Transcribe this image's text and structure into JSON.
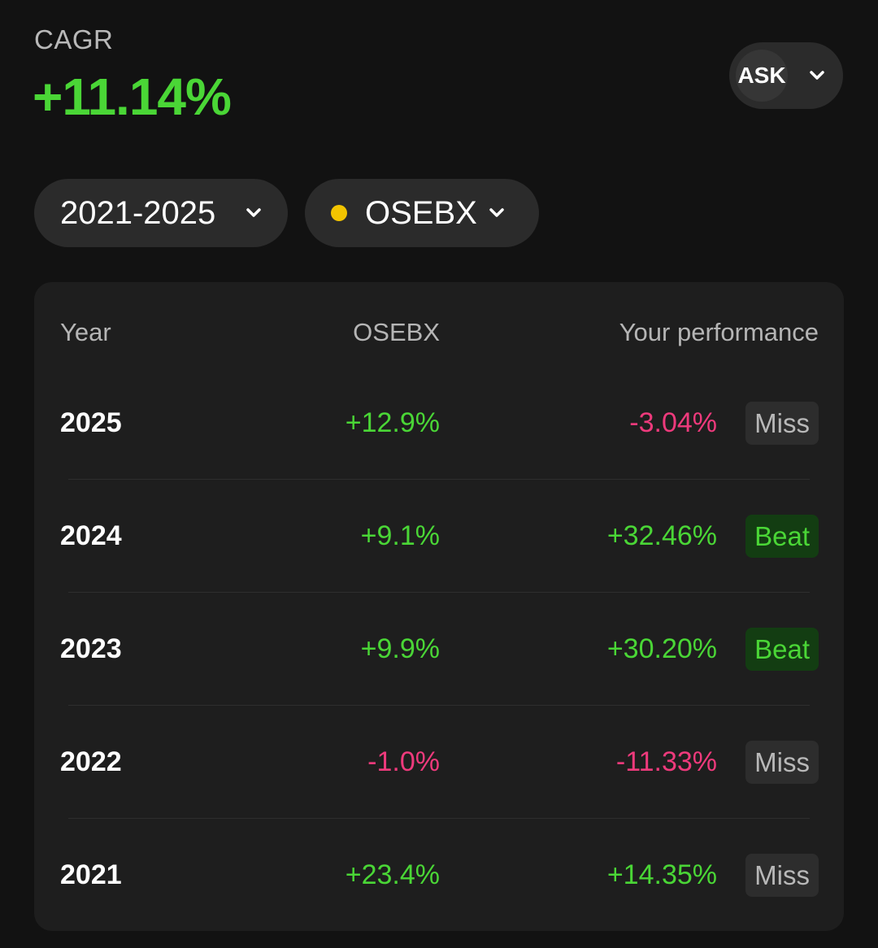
{
  "summary": {
    "label": "CAGR",
    "value": "+11.14%",
    "value_color": "#4ad636"
  },
  "ask_button": {
    "label": "ASK",
    "icon": "chevron-down-icon"
  },
  "filters": {
    "range": {
      "label": "2021-2025",
      "icon": "chevron-down-icon"
    },
    "index": {
      "label": "OSEBX",
      "dot_color": "#f2c400",
      "icon": "chevron-down-icon"
    }
  },
  "table": {
    "headers": {
      "year": "Year",
      "index": "OSEBX",
      "performance": "Your performance"
    },
    "rows": [
      {
        "year": "2025",
        "index": "+12.9%",
        "index_trend": "pos",
        "performance": "-3.04%",
        "performance_trend": "neg",
        "result": "Miss"
      },
      {
        "year": "2024",
        "index": "+9.1%",
        "index_trend": "pos",
        "performance": "+32.46%",
        "performance_trend": "pos",
        "result": "Beat"
      },
      {
        "year": "2023",
        "index": "+9.9%",
        "index_trend": "pos",
        "performance": "+30.20%",
        "performance_trend": "pos",
        "result": "Beat"
      },
      {
        "year": "2022",
        "index": "-1.0%",
        "index_trend": "neg",
        "performance": "-11.33%",
        "performance_trend": "neg",
        "result": "Miss"
      },
      {
        "year": "2021",
        "index": "+23.4%",
        "index_trend": "pos",
        "performance": "+14.35%",
        "performance_trend": "pos",
        "result": "Miss"
      }
    ]
  },
  "colors": {
    "background": "#121212",
    "card": "#1e1e1e",
    "positive": "#4ad636",
    "negative": "#ee3a7c",
    "beat_badge_bg": "#133d12",
    "miss_badge_bg": "#2d2d2d"
  }
}
